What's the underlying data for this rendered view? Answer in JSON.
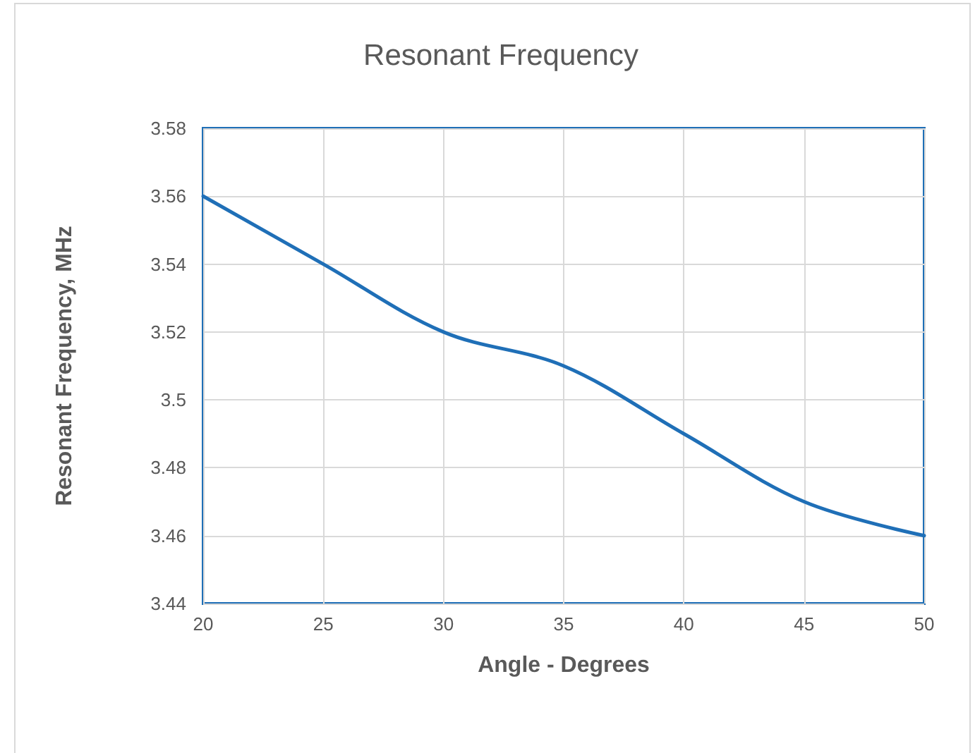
{
  "chart_data": {
    "type": "line",
    "title": "Resonant Frequency",
    "xlabel": "Angle - Degrees",
    "ylabel": "Resonant Frequency, MHz",
    "x": [
      20,
      25,
      30,
      35,
      40,
      45,
      50
    ],
    "series": [
      {
        "color": "#1f6fb7",
        "values": [
          3.56,
          3.54,
          3.52,
          3.51,
          3.49,
          3.47,
          3.46
        ]
      }
    ],
    "xlim": [
      20,
      50
    ],
    "xticks": [
      20,
      25,
      30,
      35,
      40,
      45,
      50
    ],
    "ylim": [
      3.44,
      3.58
    ],
    "yticks": [
      {
        "value": 3.44,
        "label": "3.44"
      },
      {
        "value": 3.46,
        "label": "3.46"
      },
      {
        "value": 3.48,
        "label": "3.48"
      },
      {
        "value": 3.5,
        "label": "3.5"
      },
      {
        "value": 3.52,
        "label": "3.52"
      },
      {
        "value": 3.54,
        "label": "3.54"
      },
      {
        "value": 3.56,
        "label": "3.56"
      },
      {
        "value": 3.58,
        "label": "3.58"
      }
    ],
    "grid": true,
    "marker": "none",
    "line_style": "solid"
  }
}
